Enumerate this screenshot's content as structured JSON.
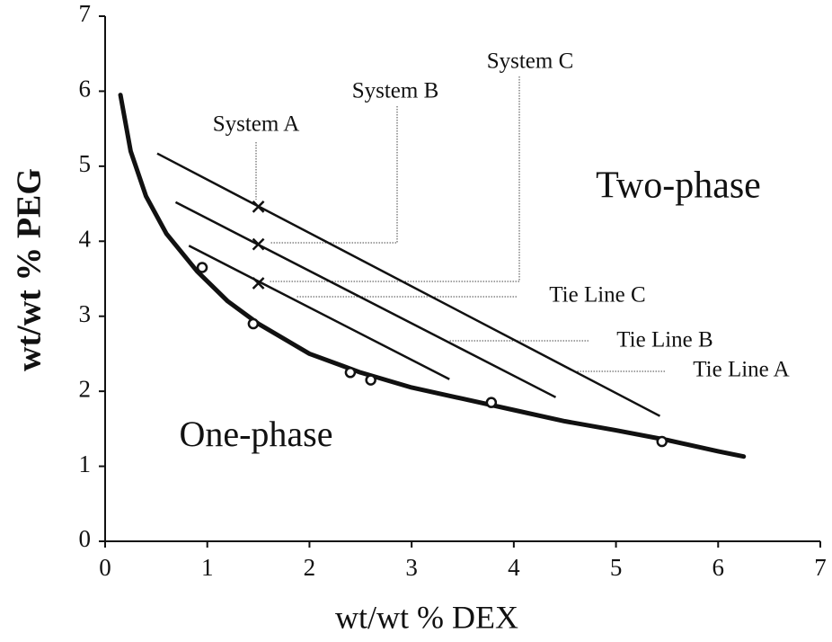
{
  "chart_data": {
    "type": "line",
    "x_label": "wt/wt % DEX",
    "y_label": "wt/wt % PEG",
    "xlim": [
      0,
      7
    ],
    "ylim": [
      0,
      7
    ],
    "xticks": [
      0,
      1,
      2,
      3,
      4,
      5,
      6,
      7
    ],
    "yticks": [
      0,
      1,
      2,
      3,
      4,
      5,
      6,
      7
    ],
    "color": "#111111",
    "curve": {
      "x": [
        0.15,
        0.25,
        0.4,
        0.6,
        0.9,
        1.2,
        1.5,
        2,
        2.5,
        3,
        3.5,
        4,
        4.5,
        5,
        5.5,
        6,
        6.25
      ],
      "y": [
        5.95,
        5.2,
        4.6,
        4.1,
        3.6,
        3.2,
        2.9,
        2.5,
        2.25,
        2.05,
        1.9,
        1.75,
        1.6,
        1.48,
        1.35,
        1.2,
        1.13
      ]
    },
    "points": {
      "x": [
        0.95,
        1.45,
        2.4,
        2.6,
        3.78,
        5.45
      ],
      "y": [
        3.65,
        2.9,
        2.25,
        2.15,
        1.85,
        1.33
      ]
    },
    "systems": [
      {
        "label": "System A",
        "x": 1.5,
        "y": 4.46
      },
      {
        "label": "System B",
        "x": 1.5,
        "y": 3.96
      },
      {
        "label": "System C",
        "x": 1.5,
        "y": 3.44
      }
    ],
    "tie_lines": [
      {
        "label": "Tie Line A",
        "x": [
          0.51,
          5.43
        ],
        "y": [
          5.17,
          1.67
        ]
      },
      {
        "label": "Tie Line B",
        "x": [
          0.69,
          4.41
        ],
        "y": [
          4.52,
          1.92
        ]
      },
      {
        "label": "Tie Line C",
        "x": [
          0.82,
          3.37
        ],
        "y": [
          3.94,
          2.16
        ]
      }
    ],
    "annotations": [
      "Two-phase",
      "One-phase"
    ]
  }
}
